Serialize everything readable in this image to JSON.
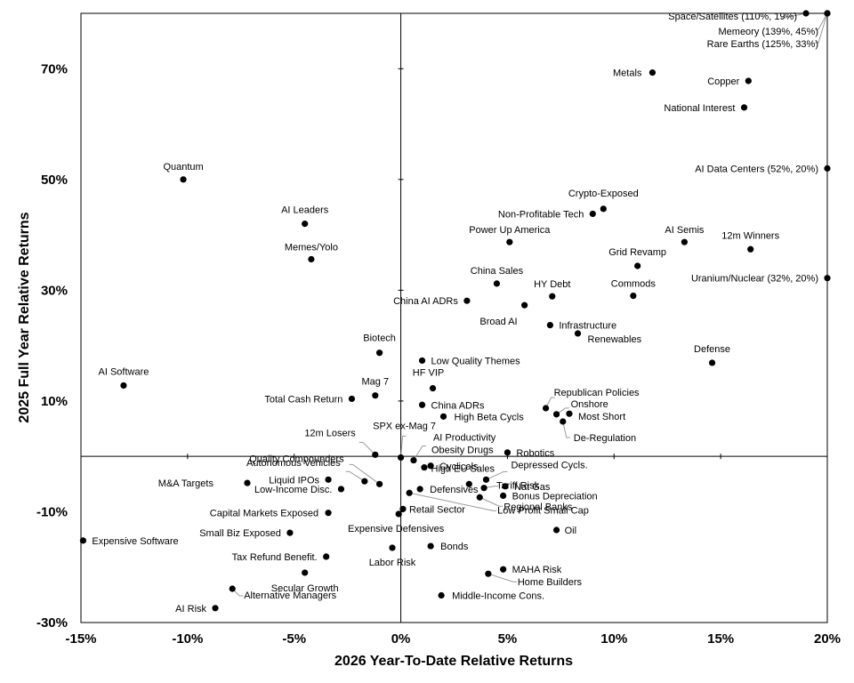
{
  "chart_data": {
    "type": "scatter",
    "title": "",
    "xlabel": "2026 Year-To-Date Relative Returns",
    "ylabel": "2025 Full Year Relative Returns",
    "xlim": [
      -15,
      20
    ],
    "ylim": [
      -30,
      80
    ],
    "xticks": [
      -15,
      -10,
      -5,
      0,
      5,
      10,
      15,
      20
    ],
    "xtick_labels": [
      "-15%",
      "-10%",
      "-5%",
      "0%",
      "5%",
      "10%",
      "15%",
      "20%"
    ],
    "yticks": [
      -30,
      -10,
      10,
      30,
      50,
      70
    ],
    "ytick_labels": [
      "-30%",
      "-10%",
      "10%",
      "30%",
      "50%",
      "70%"
    ],
    "grid": false,
    "quadrant_lines": true,
    "marker_color": "#000000",
    "points": [
      {
        "label": "Space/Satellites (110%, 19%)",
        "x": 19.0,
        "y": 80.0
      },
      {
        "label": "Memeory (139%, 45%)",
        "x": 20.0,
        "y": 80.0
      },
      {
        "label": "Rare Earths (125%, 33%)",
        "x": 20.0,
        "y": 80.0
      },
      {
        "label": "Metals",
        "x": 11.8,
        "y": 69.3
      },
      {
        "label": "Copper",
        "x": 16.3,
        "y": 67.8
      },
      {
        "label": "National Interest",
        "x": 16.1,
        "y": 63.0
      },
      {
        "label": "Quantum",
        "x": -10.2,
        "y": 50.0
      },
      {
        "label": "AI Data Centers (52%, 20%)",
        "x": 20.0,
        "y": 52.0
      },
      {
        "label": "Crypto-Exposed",
        "x": 9.5,
        "y": 44.7
      },
      {
        "label": "Non-Profitable Tech",
        "x": 9.0,
        "y": 43.8
      },
      {
        "label": "AI Leaders",
        "x": -4.5,
        "y": 42.0
      },
      {
        "label": "Power Up America",
        "x": 5.1,
        "y": 38.7
      },
      {
        "label": "AI Semis",
        "x": 13.3,
        "y": 38.7
      },
      {
        "label": "12m Winners",
        "x": 16.4,
        "y": 37.4
      },
      {
        "label": "Memes/Yolo",
        "x": -4.2,
        "y": 35.6
      },
      {
        "label": "Grid Revamp",
        "x": 11.1,
        "y": 34.4
      },
      {
        "label": "Uranium/Nuclear (32%, 20%)",
        "x": 20.0,
        "y": 32.2
      },
      {
        "label": "China Sales",
        "x": 4.5,
        "y": 31.2
      },
      {
        "label": "HY Debt",
        "x": 7.1,
        "y": 28.9
      },
      {
        "label": "Commods",
        "x": 10.9,
        "y": 29.0
      },
      {
        "label": "China AI ADRs",
        "x": 3.1,
        "y": 28.1
      },
      {
        "label": "Broad AI",
        "x": 5.8,
        "y": 27.3
      },
      {
        "label": "Infrastructure",
        "x": 7.0,
        "y": 23.7
      },
      {
        "label": "Renewables",
        "x": 8.3,
        "y": 22.2
      },
      {
        "label": "Biotech",
        "x": -1.0,
        "y": 18.7
      },
      {
        "label": "Defense",
        "x": 14.6,
        "y": 16.9
      },
      {
        "label": "Low Quality Themes",
        "x": 1.0,
        "y": 17.3
      },
      {
        "label": "AI Software",
        "x": -13.0,
        "y": 12.8
      },
      {
        "label": "HF VIP",
        "x": 1.5,
        "y": 12.3
      },
      {
        "label": "Mag 7",
        "x": -1.2,
        "y": 11.0
      },
      {
        "label": "Total Cash Return",
        "x": -2.3,
        "y": 10.4
      },
      {
        "label": "Republican Policies",
        "x": 6.8,
        "y": 8.7
      },
      {
        "label": "China ADRs",
        "x": 1.0,
        "y": 9.3
      },
      {
        "label": "Onshore",
        "x": 7.3,
        "y": 7.6
      },
      {
        "label": "Most Short",
        "x": 7.9,
        "y": 7.7
      },
      {
        "label": "High Beta Cycls",
        "x": 2.0,
        "y": 7.2
      },
      {
        "label": "De-Regulation",
        "x": 7.6,
        "y": 6.3
      },
      {
        "label": "SPX ex-Mag 7",
        "x": 0.0,
        "y": -0.2
      },
      {
        "label": "AI Productivity",
        "x": 0.6,
        "y": -0.7
      },
      {
        "label": "12m Losers",
        "x": -1.2,
        "y": 0.3
      },
      {
        "label": "Obesity Drugs",
        "x": 1.1,
        "y": -2.0
      },
      {
        "label": "Robotics",
        "x": 5.0,
        "y": 0.7
      },
      {
        "label": "Quality Compounders",
        "x": -1.0,
        "y": -5.0
      },
      {
        "label": "Cyclicals",
        "x": 1.4,
        "y": -1.7
      },
      {
        "label": "Depressed Cycls.",
        "x": 4.0,
        "y": -4.2
      },
      {
        "label": "Autonomous Vehicles",
        "x": -1.7,
        "y": -4.5
      },
      {
        "label": "Liquid IPOs",
        "x": -3.4,
        "y": -4.2
      },
      {
        "label": "M&A Targets",
        "x": -7.2,
        "y": -4.8
      },
      {
        "label": "Tariff Risk",
        "x": 3.9,
        "y": -5.7
      },
      {
        "label": "Nat Gas",
        "x": 4.9,
        "y": -5.4
      },
      {
        "label": "High EU Sales",
        "x": 3.2,
        "y": -5.0
      },
      {
        "label": "Low-Income Disc.",
        "x": -2.8,
        "y": -5.9
      },
      {
        "label": "Defensives",
        "x": 0.9,
        "y": -5.9
      },
      {
        "label": "Bonus Depreciation",
        "x": 4.8,
        "y": -7.1
      },
      {
        "label": "Regional Banks",
        "x": 3.7,
        "y": -7.4
      },
      {
        "label": "Low Profit Small Cap",
        "x": 0.4,
        "y": -6.6
      },
      {
        "label": "Retail Sector",
        "x": 0.1,
        "y": -9.5
      },
      {
        "label": "Capital Markets Exposed",
        "x": -3.4,
        "y": -10.2
      },
      {
        "label": "Expensive Defensives",
        "x": -0.1,
        "y": -10.4
      },
      {
        "label": "Oil",
        "x": 7.3,
        "y": -13.3
      },
      {
        "label": "Small Biz Exposed",
        "x": -5.2,
        "y": -13.8
      },
      {
        "label": "Expensive Software",
        "x": -14.9,
        "y": -15.2
      },
      {
        "label": "Labor Risk",
        "x": -0.4,
        "y": -16.5
      },
      {
        "label": "Bonds",
        "x": 1.4,
        "y": -16.2
      },
      {
        "label": "Tax Refund Benefit.",
        "x": -3.5,
        "y": -18.1
      },
      {
        "label": "MAHA Risk",
        "x": 4.8,
        "y": -20.4
      },
      {
        "label": "Secular Growth",
        "x": -4.5,
        "y": -21.0
      },
      {
        "label": "Home Builders",
        "x": 4.1,
        "y": -21.2
      },
      {
        "label": "Alternative Managers",
        "x": -7.9,
        "y": -23.9
      },
      {
        "label": "Middle-Income Cons.",
        "x": 1.9,
        "y": -25.1
      },
      {
        "label": "AI Risk",
        "x": -8.7,
        "y": -27.4
      }
    ]
  }
}
